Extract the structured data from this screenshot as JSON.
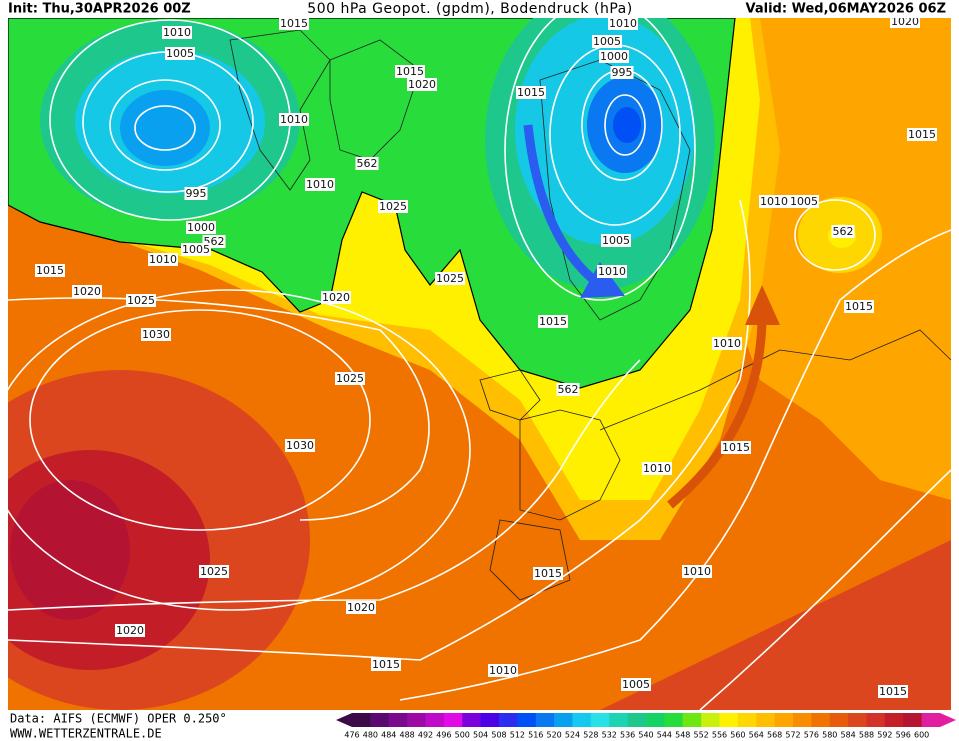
{
  "header": {
    "init": "Init: Thu,30APR2026 00Z",
    "title": "500 hPa Geopot. (gpdm), Bodendruck (hPa)",
    "valid": "Valid: Wed,06MAY2026 06Z"
  },
  "map": {
    "isobar_labels": [
      1015,
      1010,
      1020,
      1010,
      1005,
      1005,
      1000,
      995,
      1015,
      1020,
      1015,
      1010,
      1015,
      562,
      1010,
      995,
      1025,
      1010,
      1005,
      562,
      1000,
      562,
      1005,
      1010,
      1005,
      1015,
      1025,
      1010,
      1020,
      1025,
      1020,
      1015,
      1015,
      1030,
      1010,
      1025,
      562,
      1030,
      1015,
      1010,
      1025,
      1015,
      1010,
      1020,
      1020,
      1015,
      1010,
      1005,
      1015
    ]
  },
  "footer": {
    "source": "Data: AIFS (ECMWF) OPER 0.250°",
    "website": "WWW.WETTERZENTRALE.DE"
  },
  "color_scale": {
    "values": [
      476,
      480,
      484,
      488,
      492,
      496,
      500,
      504,
      508,
      512,
      516,
      520,
      524,
      528,
      532,
      536,
      540,
      544,
      548,
      552,
      556,
      560,
      564,
      568,
      572,
      576,
      580,
      584,
      588,
      592,
      596,
      600
    ],
    "colors": [
      "#3c0a49",
      "#5a0a6e",
      "#780a8c",
      "#9b0aa5",
      "#be0ac8",
      "#e10ae6",
      "#7a00dc",
      "#4b00e6",
      "#2d2df0",
      "#0050f5",
      "#0a78f0",
      "#0aa0f0",
      "#14c8f0",
      "#28e1e6",
      "#1ed2b4",
      "#1ec88c",
      "#14d264",
      "#28dc3c",
      "#6ee614",
      "#c8f00a",
      "#fff000",
      "#ffd700",
      "#ffbe00",
      "#ffa500",
      "#fa8c00",
      "#f07300",
      "#e65a0a",
      "#dc461e",
      "#d23228",
      "#c31e28",
      "#b41432",
      "#e11ea0"
    ]
  }
}
